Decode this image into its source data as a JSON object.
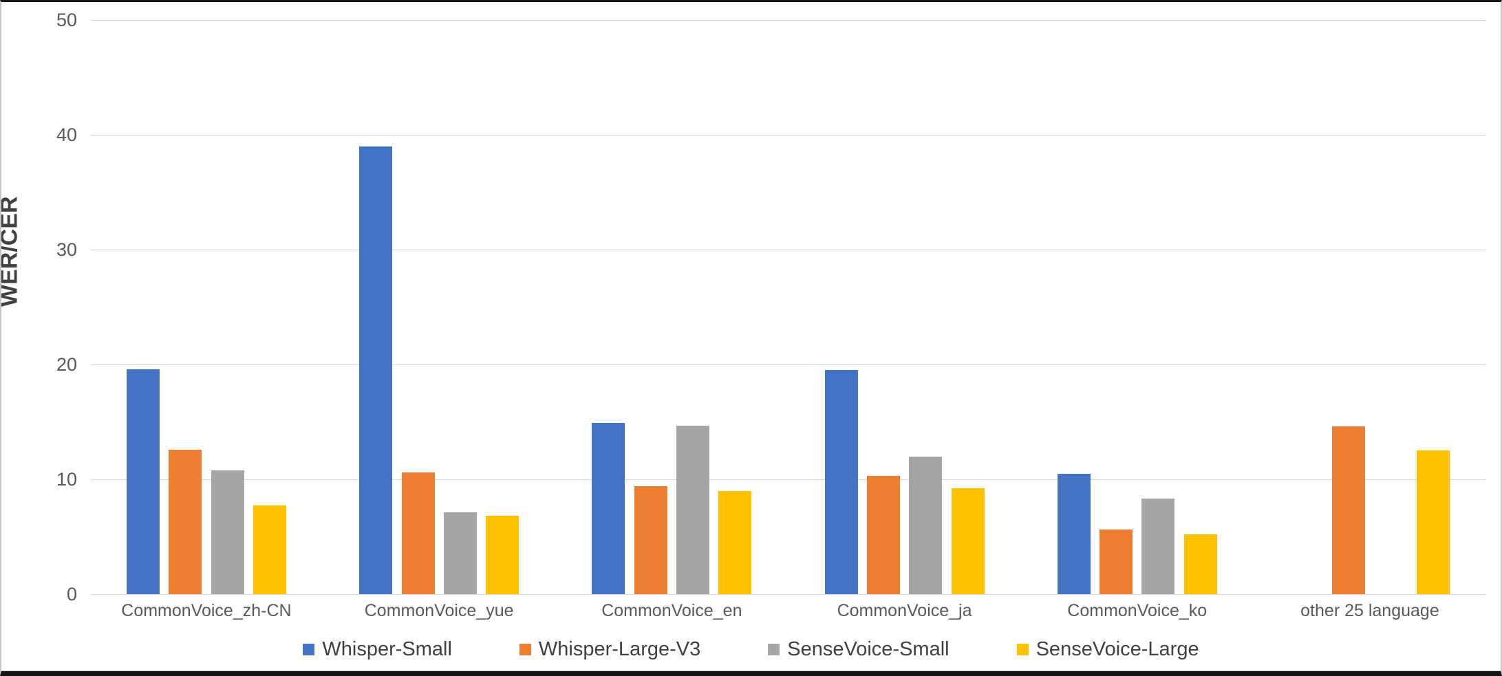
{
  "chart_data": {
    "type": "bar",
    "title": "",
    "xlabel": "",
    "ylabel": "WER/CER",
    "ylim": [
      0,
      50
    ],
    "yticks": [
      0,
      10,
      20,
      30,
      40,
      50
    ],
    "grid": true,
    "legend_position": "bottom",
    "categories": [
      "CommonVoice_zh-CN",
      "CommonVoice_yue",
      "CommonVoice_en",
      "CommonVoice_ja",
      "CommonVoice_ko",
      "other 25 language"
    ],
    "series": [
      {
        "name": "Whisper-Small",
        "color": "#4472C4",
        "values": [
          19.6,
          39.0,
          14.9,
          19.5,
          10.5,
          null
        ]
      },
      {
        "name": "Whisper-Large-V3",
        "color": "#ED7D31",
        "values": [
          12.6,
          10.6,
          9.4,
          10.3,
          5.6,
          14.6
        ]
      },
      {
        "name": "SenseVoice-Small",
        "color": "#A5A5A5",
        "values": [
          10.8,
          7.1,
          14.7,
          12.0,
          8.3,
          null
        ]
      },
      {
        "name": "SenseVoice-Large",
        "color": "#FFC000",
        "values": [
          7.7,
          6.8,
          9.0,
          9.2,
          5.2,
          12.5
        ]
      }
    ]
  },
  "theme": {
    "gridline_color": "#D9D9D9",
    "tick_text_color": "#595959",
    "axis_title_color": "#404040",
    "frame_border_color": "#141414",
    "background": "#FFFFFF"
  }
}
